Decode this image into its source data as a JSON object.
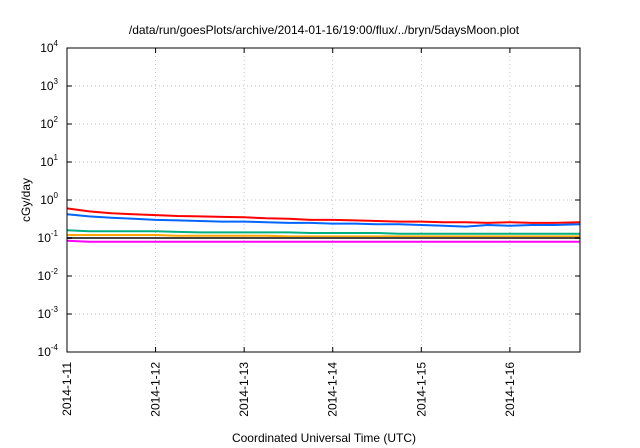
{
  "chart_data": {
    "type": "line",
    "title": "/data/run/goesPlots/archive/2014-01-16/19:00/flux/../bryn/5daysMoon.plot",
    "xlabel": "Coordinated Universal Time (UTC)",
    "ylabel": "cGy/day",
    "yscale": "log",
    "ylim": [
      0.0001,
      10000
    ],
    "y_ticks": [
      {
        "base": "10",
        "exp": "-4"
      },
      {
        "base": "10",
        "exp": "-3"
      },
      {
        "base": "10",
        "exp": "-2"
      },
      {
        "base": "10",
        "exp": "-1"
      },
      {
        "base": "10",
        "exp": "0"
      },
      {
        "base": "10",
        "exp": "1"
      },
      {
        "base": "10",
        "exp": "2"
      },
      {
        "base": "10",
        "exp": "3"
      },
      {
        "base": "10",
        "exp": "4"
      }
    ],
    "x_ticks": [
      "2014-1-11",
      "2014-1-12",
      "2014-1-13",
      "2014-1-14",
      "2014-1-15",
      "2014-1-16"
    ],
    "xlim": [
      "2014-01-11 00:00",
      "2014-01-16 19:00"
    ],
    "grid": true,
    "x": [
      "2014-01-11 00:00",
      "2014-01-11 06:00",
      "2014-01-11 12:00",
      "2014-01-11 18:00",
      "2014-01-12 00:00",
      "2014-01-12 06:00",
      "2014-01-12 12:00",
      "2014-01-12 18:00",
      "2014-01-13 00:00",
      "2014-01-13 06:00",
      "2014-01-13 12:00",
      "2014-01-13 18:00",
      "2014-01-14 00:00",
      "2014-01-14 06:00",
      "2014-01-14 12:00",
      "2014-01-14 18:00",
      "2014-01-15 00:00",
      "2014-01-15 06:00",
      "2014-01-15 12:00",
      "2014-01-15 18:00",
      "2014-01-16 00:00",
      "2014-01-16 06:00",
      "2014-01-16 12:00",
      "2014-01-16 19:00"
    ],
    "series": [
      {
        "color": "#ff0000",
        "values": [
          0.6,
          0.5,
          0.45,
          0.42,
          0.4,
          0.38,
          0.37,
          0.36,
          0.35,
          0.33,
          0.32,
          0.3,
          0.3,
          0.29,
          0.28,
          0.27,
          0.27,
          0.26,
          0.26,
          0.25,
          0.26,
          0.25,
          0.25,
          0.26
        ]
      },
      {
        "color": "#0066ff",
        "values": [
          0.42,
          0.37,
          0.34,
          0.32,
          0.3,
          0.29,
          0.28,
          0.27,
          0.27,
          0.26,
          0.25,
          0.25,
          0.24,
          0.24,
          0.23,
          0.23,
          0.22,
          0.21,
          0.2,
          0.22,
          0.21,
          0.22,
          0.22,
          0.23
        ]
      },
      {
        "color": "#00b080",
        "values": [
          0.16,
          0.15,
          0.15,
          0.15,
          0.15,
          0.145,
          0.14,
          0.14,
          0.14,
          0.14,
          0.14,
          0.135,
          0.135,
          0.135,
          0.135,
          0.13,
          0.13,
          0.13,
          0.13,
          0.13,
          0.13,
          0.13,
          0.13,
          0.13
        ]
      },
      {
        "color": "#ffa500",
        "values": [
          0.12,
          0.12,
          0.12,
          0.12,
          0.12,
          0.115,
          0.115,
          0.115,
          0.115,
          0.115,
          0.11,
          0.11,
          0.11,
          0.11,
          0.11,
          0.11,
          0.11,
          0.11,
          0.11,
          0.11,
          0.11,
          0.11,
          0.11,
          0.11
        ]
      },
      {
        "color": "#444444",
        "values": [
          0.1,
          0.1,
          0.1,
          0.1,
          0.1,
          0.1,
          0.1,
          0.1,
          0.1,
          0.1,
          0.1,
          0.1,
          0.1,
          0.1,
          0.1,
          0.1,
          0.1,
          0.1,
          0.1,
          0.1,
          0.1,
          0.1,
          0.1,
          0.1
        ]
      },
      {
        "color": "#ff00ff",
        "values": [
          0.085,
          0.08,
          0.08,
          0.08,
          0.08,
          0.08,
          0.08,
          0.08,
          0.08,
          0.08,
          0.08,
          0.08,
          0.08,
          0.08,
          0.08,
          0.08,
          0.08,
          0.08,
          0.08,
          0.08,
          0.08,
          0.08,
          0.08,
          0.08
        ]
      }
    ]
  }
}
